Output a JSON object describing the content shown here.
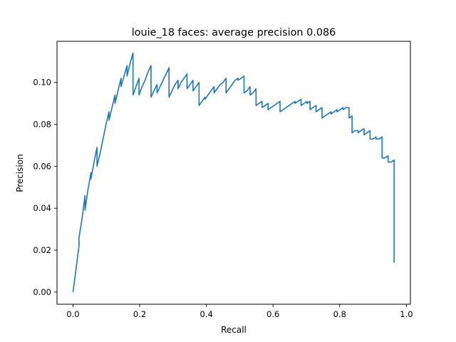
{
  "chart_data": {
    "type": "line",
    "title": "louie_18 faces: average precision 0.086",
    "xlabel": "Recall",
    "ylabel": "Precision",
    "xlim": [
      -0.048,
      1.012
    ],
    "ylim": [
      -0.0058,
      0.1196
    ],
    "xticks": [
      0.0,
      0.2,
      0.4,
      0.6,
      0.8,
      1.0
    ],
    "xtick_labels": [
      "0.0",
      "0.2",
      "0.4",
      "0.6",
      "0.8",
      "1.0"
    ],
    "yticks": [
      0.0,
      0.02,
      0.04,
      0.06,
      0.08,
      0.1
    ],
    "ytick_labels": [
      "0.00",
      "0.02",
      "0.04",
      "0.06",
      "0.08",
      "0.10"
    ],
    "grid": false,
    "line_color": "#1f77b4",
    "series": [
      {
        "points": [
          [
            0.0,
            0.0
          ],
          [
            0.018,
            0.022
          ],
          [
            0.018,
            0.026
          ],
          [
            0.027,
            0.035
          ],
          [
            0.036,
            0.046
          ],
          [
            0.036,
            0.039
          ],
          [
            0.045,
            0.049
          ],
          [
            0.054,
            0.057
          ],
          [
            0.054,
            0.054
          ],
          [
            0.063,
            0.062
          ],
          [
            0.072,
            0.069
          ],
          [
            0.072,
            0.06
          ],
          [
            0.081,
            0.066
          ],
          [
            0.09,
            0.073
          ],
          [
            0.099,
            0.08
          ],
          [
            0.108,
            0.086
          ],
          [
            0.108,
            0.082
          ],
          [
            0.117,
            0.088
          ],
          [
            0.126,
            0.094
          ],
          [
            0.126,
            0.09
          ],
          [
            0.135,
            0.096
          ],
          [
            0.144,
            0.102
          ],
          [
            0.144,
            0.098
          ],
          [
            0.153,
            0.103
          ],
          [
            0.162,
            0.108
          ],
          [
            0.162,
            0.103
          ],
          [
            0.171,
            0.109
          ],
          [
            0.18,
            0.114
          ],
          [
            0.18,
            0.094
          ],
          [
            0.189,
            0.098
          ],
          [
            0.198,
            0.102
          ],
          [
            0.198,
            0.094
          ],
          [
            0.207,
            0.098
          ],
          [
            0.216,
            0.101
          ],
          [
            0.225,
            0.105
          ],
          [
            0.234,
            0.108
          ],
          [
            0.234,
            0.093
          ],
          [
            0.243,
            0.096
          ],
          [
            0.252,
            0.099
          ],
          [
            0.252,
            0.095
          ],
          [
            0.261,
            0.098
          ],
          [
            0.27,
            0.101
          ],
          [
            0.279,
            0.104
          ],
          [
            0.288,
            0.107
          ],
          [
            0.288,
            0.093
          ],
          [
            0.297,
            0.096
          ],
          [
            0.306,
            0.099
          ],
          [
            0.315,
            0.101
          ],
          [
            0.315,
            0.097
          ],
          [
            0.324,
            0.1
          ],
          [
            0.333,
            0.102
          ],
          [
            0.342,
            0.104
          ],
          [
            0.342,
            0.097
          ],
          [
            0.351,
            0.099
          ],
          [
            0.36,
            0.101
          ],
          [
            0.36,
            0.096
          ],
          [
            0.369,
            0.098
          ],
          [
            0.378,
            0.1
          ],
          [
            0.378,
            0.089
          ],
          [
            0.387,
            0.091
          ],
          [
            0.396,
            0.093
          ],
          [
            0.396,
            0.092
          ],
          [
            0.405,
            0.094
          ],
          [
            0.414,
            0.096
          ],
          [
            0.423,
            0.098
          ],
          [
            0.423,
            0.095
          ],
          [
            0.432,
            0.097
          ],
          [
            0.441,
            0.099
          ],
          [
            0.45,
            0.1
          ],
          [
            0.459,
            0.102
          ],
          [
            0.459,
            0.095
          ],
          [
            0.468,
            0.097
          ],
          [
            0.477,
            0.099
          ],
          [
            0.486,
            0.101
          ],
          [
            0.495,
            0.102
          ],
          [
            0.495,
            0.101
          ],
          [
            0.504,
            0.102
          ],
          [
            0.513,
            0.103
          ],
          [
            0.513,
            0.095
          ],
          [
            0.522,
            0.096
          ],
          [
            0.531,
            0.098
          ],
          [
            0.531,
            0.094
          ],
          [
            0.54,
            0.095
          ],
          [
            0.549,
            0.097
          ],
          [
            0.549,
            0.089
          ],
          [
            0.558,
            0.09
          ],
          [
            0.567,
            0.091
          ],
          [
            0.567,
            0.088
          ],
          [
            0.576,
            0.089
          ],
          [
            0.585,
            0.09
          ],
          [
            0.585,
            0.087
          ],
          [
            0.594,
            0.088
          ],
          [
            0.603,
            0.089
          ],
          [
            0.612,
            0.09
          ],
          [
            0.621,
            0.091
          ],
          [
            0.621,
            0.086
          ],
          [
            0.63,
            0.087
          ],
          [
            0.639,
            0.088
          ],
          [
            0.648,
            0.089
          ],
          [
            0.657,
            0.09
          ],
          [
            0.666,
            0.091
          ],
          [
            0.666,
            0.09
          ],
          [
            0.675,
            0.091
          ],
          [
            0.684,
            0.092
          ],
          [
            0.684,
            0.089
          ],
          [
            0.693,
            0.09
          ],
          [
            0.702,
            0.091
          ],
          [
            0.702,
            0.09
          ],
          [
            0.711,
            0.091
          ],
          [
            0.711,
            0.087
          ],
          [
            0.72,
            0.088
          ],
          [
            0.729,
            0.089
          ],
          [
            0.729,
            0.086
          ],
          [
            0.738,
            0.087
          ],
          [
            0.747,
            0.088
          ],
          [
            0.747,
            0.083
          ],
          [
            0.756,
            0.084
          ],
          [
            0.765,
            0.085
          ],
          [
            0.774,
            0.086
          ],
          [
            0.774,
            0.085
          ],
          [
            0.783,
            0.086
          ],
          [
            0.792,
            0.087
          ],
          [
            0.792,
            0.086
          ],
          [
            0.801,
            0.087
          ],
          [
            0.81,
            0.088
          ],
          [
            0.81,
            0.087
          ],
          [
            0.819,
            0.088
          ],
          [
            0.828,
            0.088
          ],
          [
            0.828,
            0.083
          ],
          [
            0.837,
            0.084
          ],
          [
            0.837,
            0.076
          ],
          [
            0.846,
            0.077
          ],
          [
            0.855,
            0.077
          ],
          [
            0.855,
            0.076
          ],
          [
            0.864,
            0.077
          ],
          [
            0.873,
            0.078
          ],
          [
            0.873,
            0.075
          ],
          [
            0.882,
            0.076
          ],
          [
            0.891,
            0.077
          ],
          [
            0.891,
            0.073
          ],
          [
            0.9,
            0.073
          ],
          [
            0.909,
            0.074
          ],
          [
            0.909,
            0.073
          ],
          [
            0.918,
            0.073
          ],
          [
            0.927,
            0.074
          ],
          [
            0.927,
            0.064
          ],
          [
            0.936,
            0.064
          ],
          [
            0.945,
            0.065
          ],
          [
            0.945,
            0.062
          ],
          [
            0.954,
            0.062
          ],
          [
            0.963,
            0.063
          ],
          [
            0.963,
            0.014
          ]
        ]
      }
    ]
  }
}
